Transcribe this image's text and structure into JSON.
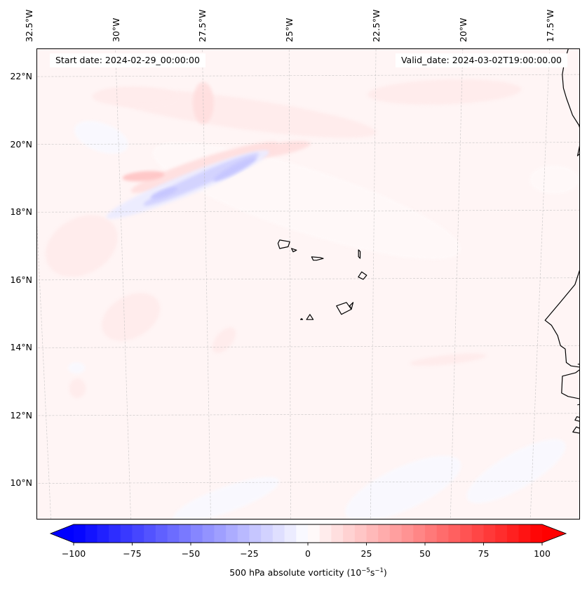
{
  "chart_data": {
    "type": "heatmap",
    "title": "",
    "variable": "500 hPa absolute vorticity",
    "units_prefix": "10",
    "units_exp1": "−5",
    "units_mid": "s",
    "units_exp2": "−1",
    "start_date_label": "Start date: 2024-02-29_00:00:00",
    "valid_date_label": "Valid_date: 2024-03-02T19:00:00.00",
    "longitude_ticks": [
      "32.5°W",
      "30°W",
      "27.5°W",
      "25°W",
      "22.5°W",
      "20°W",
      "17.5°W"
    ],
    "longitude_values": [
      -32.5,
      -30,
      -27.5,
      -25,
      -22.5,
      -20,
      -17.5
    ],
    "latitude_ticks": [
      "22°N",
      "20°N",
      "18°N",
      "16°N",
      "14°N",
      "12°N",
      "10°N"
    ],
    "latitude_values": [
      22,
      20,
      18,
      16,
      14,
      12,
      10
    ],
    "extent": {
      "lon_min": -32.6,
      "lon_max": -16.3,
      "lat_min": 8.9,
      "lat_max": 22.8
    },
    "colorbar": {
      "colormap": "bwr",
      "vmin": -100,
      "vmax": 100,
      "step": 5,
      "extend": "both",
      "ticks": [
        -100,
        -75,
        -50,
        -25,
        0,
        25,
        50,
        75,
        100
      ],
      "tick_labels": [
        "−100",
        "−75",
        "−50",
        "−25",
        "0",
        "25",
        "50",
        "75",
        "100"
      ],
      "min_color": "#0000ff",
      "mid_color": "#ffffff",
      "max_color": "#ff0000"
    },
    "features": [
      {
        "name": "negative-vorticity-band",
        "description": "SW-NE band of negative vorticity",
        "lon": [
          -30.6,
          -25.8
        ],
        "lat": [
          18.0,
          19.7
        ],
        "min_value": -20
      },
      {
        "name": "positive-vorticity-band",
        "description": "Positive vorticity north of the negative band",
        "lon": [
          -30.0,
          -26.0
        ],
        "lat": [
          18.8,
          19.8
        ],
        "max_value": 20
      },
      {
        "name": "background",
        "description": "Weak positive vorticity over most of domain",
        "value_range": [
          0,
          10
        ]
      }
    ],
    "coastlines": [
      "West Africa (Mauritania, Senegal, Gambia, Guinea-Bissau)",
      "Cape Verde islands"
    ],
    "gridlines": true
  }
}
